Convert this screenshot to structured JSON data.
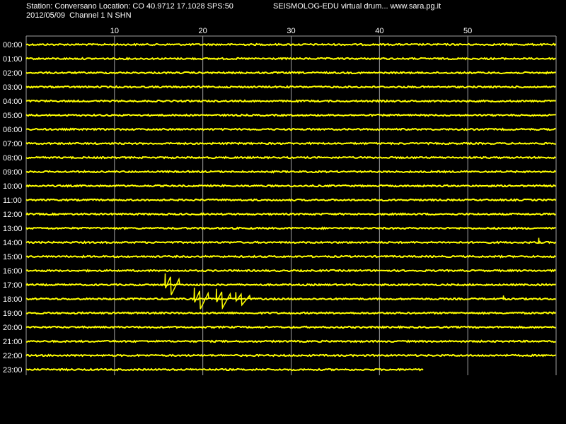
{
  "header": {
    "station_line": "Station: Conversano Location: CO 40.9712 17.1028 SPS:50",
    "date_line": "2012/05/09  Channel 1 N SHN",
    "title": "SEISMOLOG-EDU virtual drum... www.sara.pg.it"
  },
  "colors": {
    "background": "#000000",
    "trace": "#ffff00",
    "grid": "#a0a0a0",
    "text": "#ffffff"
  },
  "chart_data": {
    "type": "line",
    "x_ticks": [
      "10",
      "20",
      "30",
      "40",
      "50"
    ],
    "x_tick_values": [
      10,
      20,
      30,
      40,
      50
    ],
    "xlim": [
      0,
      60
    ],
    "rows": [
      "00:00",
      "01:00",
      "02:00",
      "03:00",
      "04:00",
      "05:00",
      "06:00",
      "07:00",
      "08:00",
      "09:00",
      "10:00",
      "11:00",
      "12:00",
      "13:00",
      "14:00",
      "15:00",
      "16:00",
      "17:00",
      "18:00",
      "19:00",
      "20:00",
      "21:00",
      "22:00",
      "23:00"
    ],
    "last_row_end_minute": 45,
    "events": [
      {
        "row": "14:00",
        "minute": 58,
        "amplitude": 0.4
      },
      {
        "row": "17:00",
        "minute": 15.7,
        "amplitude": 1.0
      },
      {
        "row": "18:00",
        "minute": 19.0,
        "amplitude": 1.0
      },
      {
        "row": "18:00",
        "minute": 21.5,
        "amplitude": 0.9
      },
      {
        "row": "18:00",
        "minute": 23.7,
        "amplitude": 0.6
      },
      {
        "row": "18:00",
        "minute": 54.0,
        "amplitude": 0.3
      }
    ],
    "grid": true
  }
}
